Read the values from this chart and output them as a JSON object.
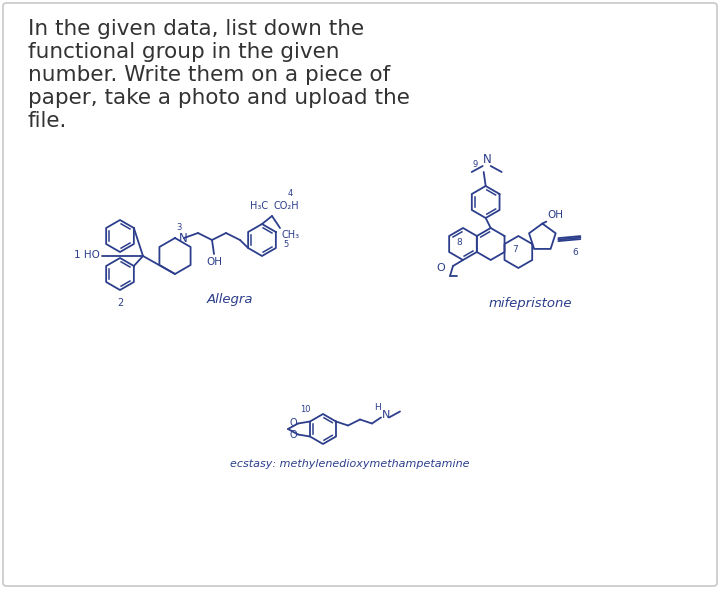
{
  "bg_color": "#ffffff",
  "border_color": "#c8c8c8",
  "title_color": "#333333",
  "molecule_color": "#2c3e8c",
  "title_lines": [
    "In the given data, list down the",
    "functional group in the given",
    "number. Write them on a piece of",
    "paper, take a photo and upload the",
    "file."
  ],
  "title_fontsize": 15.5,
  "allegra_label": "Allegra",
  "mifepristone_label": "mifepristone",
  "ecstasy_label": "ecstasy: methylenedioxymethampetamine"
}
